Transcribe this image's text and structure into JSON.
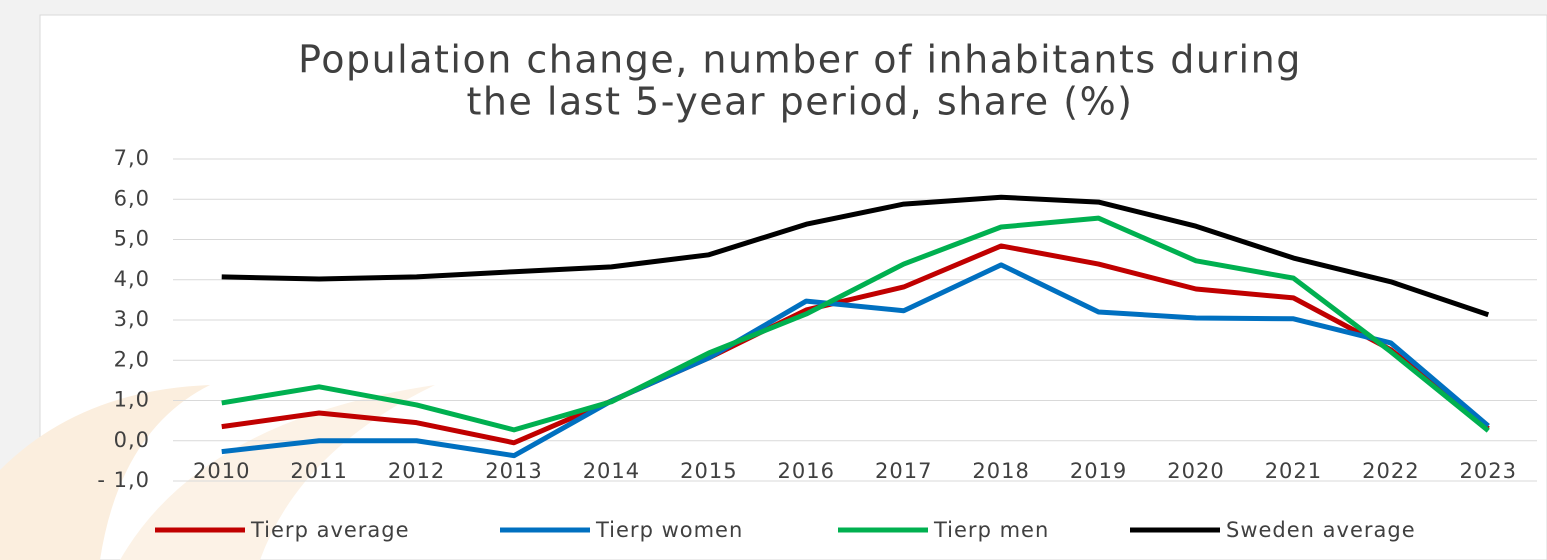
{
  "chart_data": {
    "type": "line",
    "title": [
      "Population change, number of inhabitants during",
      "the last 5-year period, share (%)"
    ],
    "categories": [
      "2010",
      "2011",
      "2012",
      "2013",
      "2014",
      "2015",
      "2016",
      "2017",
      "2018",
      "2019",
      "2020",
      "2021",
      "2022",
      "2023"
    ],
    "series": [
      {
        "name": "Tierp average",
        "color": "#c00000",
        "values": [
          0.35,
          0.69,
          0.45,
          -0.05,
          0.99,
          2.06,
          3.25,
          3.82,
          4.84,
          4.39,
          3.77,
          3.55,
          2.26,
          0.3
        ]
      },
      {
        "name": "Tierp women",
        "color": "#0070c0",
        "values": [
          -0.27,
          0,
          0,
          -0.37,
          0.99,
          2.06,
          3.47,
          3.23,
          4.37,
          3.2,
          3.05,
          3.03,
          2.43,
          0.37
        ]
      },
      {
        "name": "Tierp men",
        "color": "#00b050",
        "values": [
          0.94,
          1.34,
          0.89,
          0.27,
          0.97,
          2.18,
          3.15,
          4.39,
          5.31,
          5.53,
          4.47,
          4.04,
          2.21,
          0.25
        ]
      },
      {
        "name": "Sweden average",
        "color": "#000000",
        "values": [
          4.07,
          4.02,
          4.07,
          4.2,
          4.32,
          4.62,
          5.38,
          5.88,
          6.05,
          5.93,
          5.33,
          4.54,
          3.95,
          3.13
        ]
      }
    ],
    "ylim": [
      -1,
      7
    ],
    "yticks": [
      {
        "value": -1,
        "label": "- 1,0"
      },
      {
        "value": 0,
        "label": "0,0"
      },
      {
        "value": 1,
        "label": "1,0"
      },
      {
        "value": 2,
        "label": "2,0"
      },
      {
        "value": 3,
        "label": "3,0"
      },
      {
        "value": 4,
        "label": "4,0"
      },
      {
        "value": 5,
        "label": "5,0"
      },
      {
        "value": 6,
        "label": "6,0"
      },
      {
        "value": 7,
        "label": "7,0"
      }
    ],
    "grid": true,
    "legend": "bottom"
  }
}
